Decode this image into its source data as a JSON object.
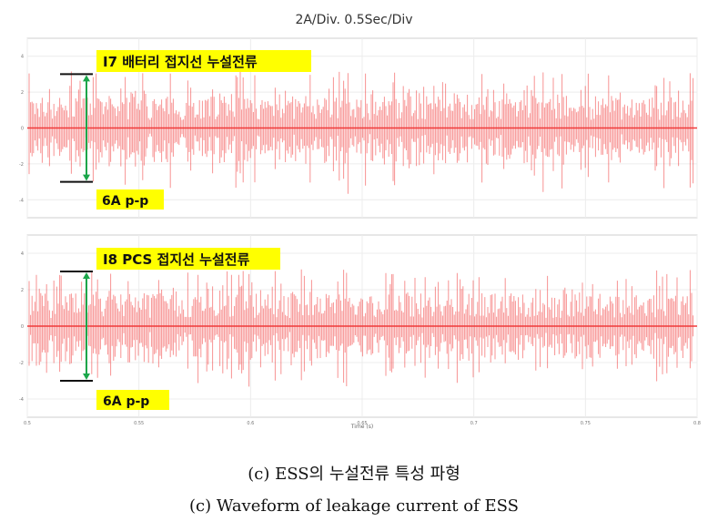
{
  "figure": {
    "header": "2A/Div. 0.5Sec/Div",
    "caption_ko": "(c) ESS의 누설전류 특성 파형",
    "caption_en": "(c) Waveform of leakage current of ESS"
  },
  "chart_data": [
    {
      "type": "line",
      "series": [
        {
          "name": "I7 배터리 접지선 누설전류"
        }
      ],
      "ylim": [
        -5,
        5
      ],
      "yticks": [
        "4",
        "2",
        "0",
        "-2",
        "-4"
      ],
      "amplitude_peak_to_peak": 6,
      "annotation_label": "I7 배터리 접지선 누설전류",
      "pp_label": "6A p-p",
      "color": "#f03a3a",
      "grid": true
    },
    {
      "type": "line",
      "series": [
        {
          "name": "I8 PCS 접지선 누설전류"
        }
      ],
      "ylim": [
        -5,
        5
      ],
      "yticks": [
        "4",
        "2",
        "0",
        "-2",
        "-4"
      ],
      "amplitude_peak_to_peak": 6,
      "annotation_label": "I8 PCS 접지선 누설전류",
      "pp_label": "6A p-p",
      "color": "#f03a3a",
      "grid": true,
      "xticks": [
        "0.5",
        "0.55",
        "0.6",
        "0.65",
        "0.7",
        "0.75",
        "0.8"
      ],
      "xlabel": "Time (s)"
    }
  ]
}
